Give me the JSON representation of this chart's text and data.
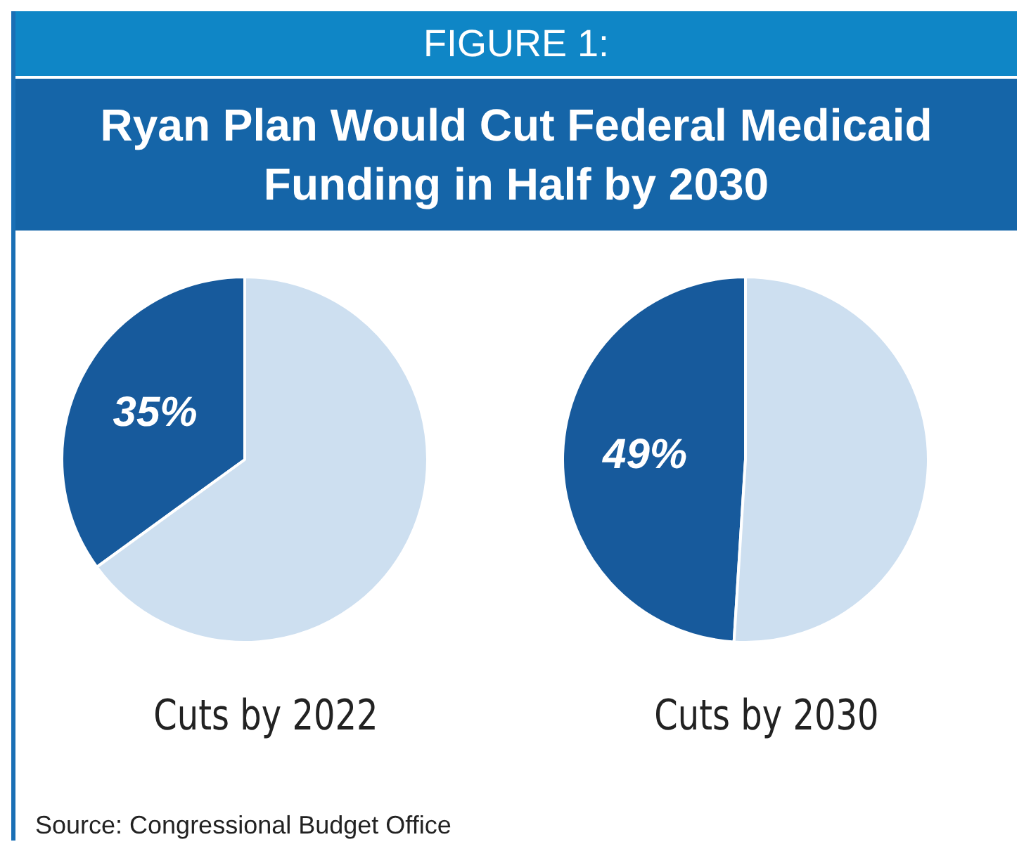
{
  "chart_data": [
    {
      "type": "other",
      "title": "FIGURE 1:",
      "subtitle": "Ryan Plan Would Cut Federal Medicaid Funding in Half by 2030",
      "annotations": [
        "Source: Congressional Budget Office"
      ]
    },
    {
      "type": "pie",
      "title": "Cuts by 2022",
      "categories": [
        null,
        null
      ],
      "values": [
        35,
        65
      ],
      "colors": [
        "#175a9c",
        "#cddff0"
      ],
      "value_labels": [
        "35%",
        null
      ]
    },
    {
      "type": "pie",
      "title": "Cuts by 2030",
      "categories": [
        null,
        null
      ],
      "values": [
        49,
        51
      ],
      "colors": [
        "#175a9c",
        "#cddff0"
      ],
      "value_labels": [
        "49%",
        null
      ]
    }
  ]
}
